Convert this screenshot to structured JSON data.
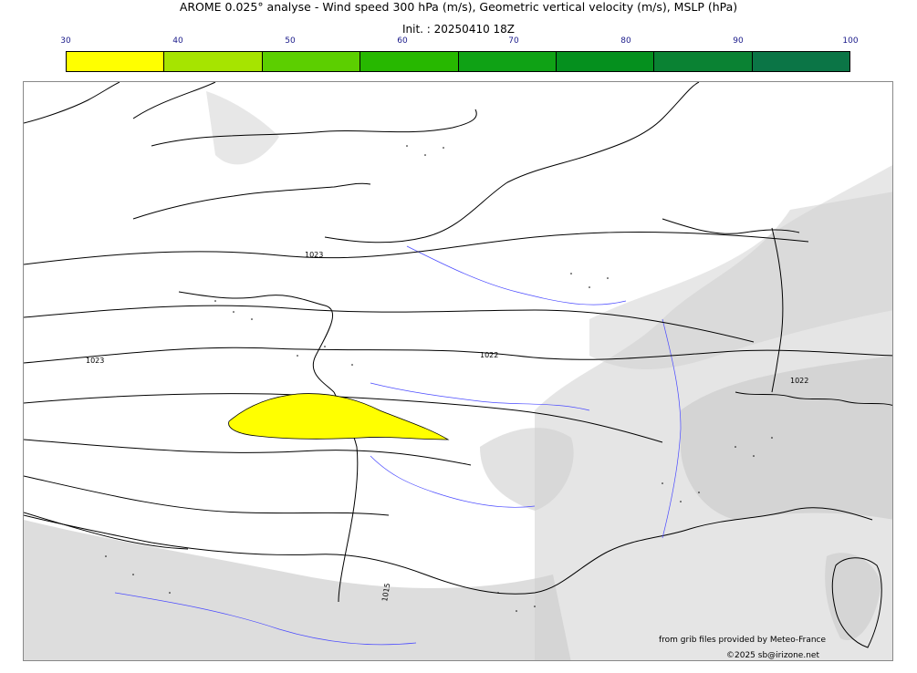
{
  "header": {
    "title": "AROME 0.025° analyse - Wind speed 300 hPa (m/s), Geometric vertical velocity (m/s), MSLP (hPa)",
    "init": "Init. : 20250410 18Z"
  },
  "colorbar": {
    "ticks": [
      "30",
      "40",
      "50",
      "60",
      "70",
      "80",
      "90",
      "100"
    ],
    "colors": [
      "#ffff00",
      "#a6e400",
      "#5ccf00",
      "#27b800",
      "#0fa215",
      "#05901e",
      "#0a8233",
      "#0b7546"
    ]
  },
  "map": {
    "isobar_labels": [
      "1023",
      "1022",
      "1023",
      "1022",
      "1015"
    ],
    "jet_area_color": "#ffff00",
    "terrain_color": "#cfcfcf",
    "river_color": "#4a4aff"
  },
  "credits": {
    "source": "from grib files provided by Meteo-France",
    "copyright": "©2025 sb@irizone.net"
  }
}
